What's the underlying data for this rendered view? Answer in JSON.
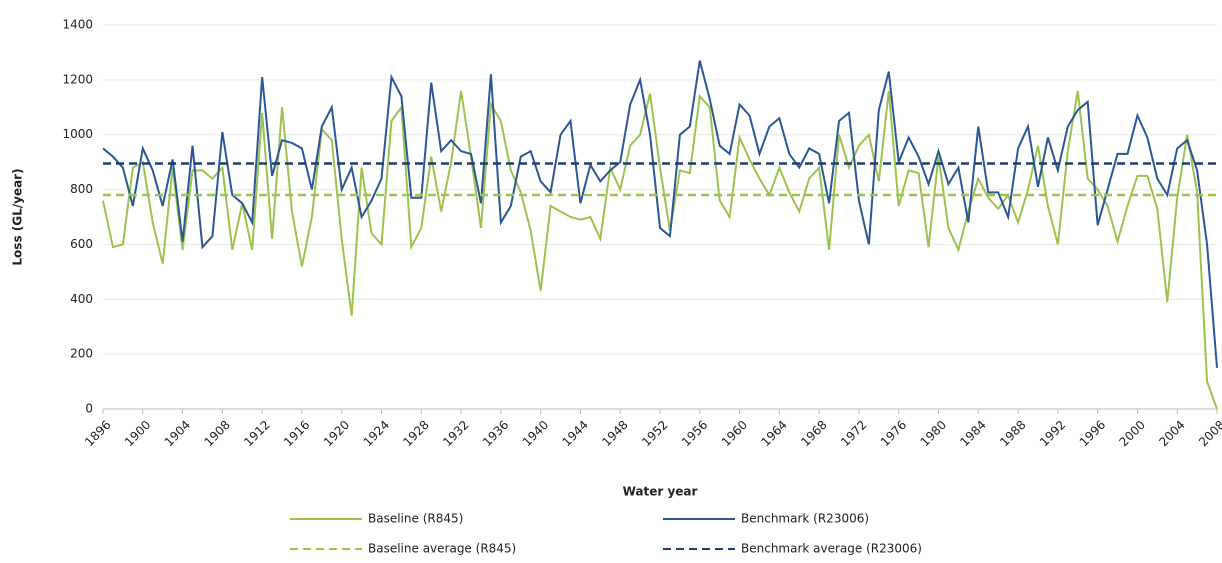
{
  "chart_data": {
    "type": "line",
    "x_label": "Water year",
    "y_label": "Loss (GL/year)",
    "x": [
      1896,
      1897,
      1898,
      1899,
      1900,
      1901,
      1902,
      1903,
      1904,
      1905,
      1906,
      1907,
      1908,
      1909,
      1910,
      1911,
      1912,
      1913,
      1914,
      1915,
      1916,
      1917,
      1918,
      1919,
      1920,
      1921,
      1922,
      1923,
      1924,
      1925,
      1926,
      1927,
      1928,
      1929,
      1930,
      1931,
      1932,
      1933,
      1934,
      1935,
      1936,
      1937,
      1938,
      1939,
      1940,
      1941,
      1942,
      1943,
      1944,
      1945,
      1946,
      1947,
      1948,
      1949,
      1950,
      1951,
      1952,
      1953,
      1954,
      1955,
      1956,
      1957,
      1958,
      1959,
      1960,
      1961,
      1962,
      1963,
      1964,
      1965,
      1966,
      1967,
      1968,
      1969,
      1970,
      1971,
      1972,
      1973,
      1974,
      1975,
      1976,
      1977,
      1978,
      1979,
      1980,
      1981,
      1982,
      1983,
      1984,
      1985,
      1986,
      1987,
      1988,
      1989,
      1990,
      1991,
      1992,
      1993,
      1994,
      1995,
      1996,
      1997,
      1998,
      1999,
      2000,
      2001,
      2002,
      2003,
      2004,
      2005,
      2006,
      2007,
      2008
    ],
    "series": [
      {
        "name": "Baseline (R845)",
        "color": "#9dc34f",
        "dash": false,
        "values": [
          760,
          590,
          600,
          880,
          900,
          680,
          530,
          880,
          580,
          870,
          870,
          840,
          880,
          580,
          750,
          580,
          1080,
          620,
          1100,
          720,
          520,
          700,
          1020,
          980,
          620,
          340,
          880,
          640,
          600,
          1050,
          1100,
          590,
          660,
          920,
          720,
          900,
          1160,
          920,
          660,
          1110,
          1050,
          870,
          790,
          650,
          430,
          740,
          720,
          700,
          690,
          700,
          620,
          880,
          800,
          960,
          1000,
          1150,
          880,
          650,
          870,
          860,
          1140,
          1100,
          760,
          700,
          990,
          910,
          840,
          780,
          880,
          790,
          720,
          840,
          880,
          580,
          1000,
          880,
          960,
          1000,
          830,
          1160,
          740,
          870,
          860,
          590,
          920,
          660,
          580,
          720,
          840,
          770,
          730,
          780,
          680,
          800,
          960,
          740,
          600,
          940,
          1160,
          840,
          800,
          740,
          610,
          740,
          850,
          850,
          730,
          390,
          770,
          1000,
          790,
          100,
          0
        ]
      },
      {
        "name": "Benchmark (R23006)",
        "color": "#2b5797",
        "dash": false,
        "values": [
          950,
          920,
          880,
          740,
          950,
          870,
          740,
          910,
          610,
          960,
          590,
          630,
          1010,
          780,
          750,
          680,
          1210,
          850,
          980,
          970,
          950,
          800,
          1030,
          1100,
          800,
          880,
          700,
          760,
          840,
          1210,
          1140,
          770,
          770,
          1190,
          940,
          980,
          940,
          930,
          750,
          1220,
          680,
          740,
          920,
          940,
          830,
          790,
          1000,
          1050,
          750,
          890,
          830,
          870,
          900,
          1110,
          1200,
          1000,
          660,
          630,
          1000,
          1030,
          1270,
          1130,
          960,
          930,
          1110,
          1070,
          930,
          1030,
          1060,
          930,
          880,
          950,
          930,
          750,
          1050,
          1080,
          760,
          600,
          1090,
          1230,
          900,
          990,
          920,
          820,
          940,
          820,
          880,
          680,
          1030,
          790,
          790,
          700,
          950,
          1030,
          810,
          990,
          870,
          1030,
          1090,
          1120,
          670,
          800,
          930,
          930,
          1070,
          990,
          840,
          780,
          950,
          980,
          870,
          600,
          150
        ]
      },
      {
        "name": "Baseline average (R845)",
        "color": "#9dc34f",
        "dash": true,
        "value": 780
      },
      {
        "name": "Benchmark average (R23006)",
        "color": "#1f3d6e",
        "dash": true,
        "value": 895
      }
    ],
    "xlim": [
      1896,
      2008
    ],
    "xticks": [
      1896,
      1900,
      1904,
      1908,
      1912,
      1916,
      1920,
      1924,
      1928,
      1932,
      1936,
      1940,
      1944,
      1948,
      1952,
      1956,
      1960,
      1964,
      1968,
      1972,
      1976,
      1980,
      1984,
      1988,
      1992,
      1996,
      2000,
      2004,
      2008
    ],
    "ylim": [
      0,
      1400
    ],
    "yticks": [
      0,
      200,
      400,
      600,
      800,
      1000,
      1200,
      1400
    ],
    "grid": true,
    "legend": "bottom"
  }
}
